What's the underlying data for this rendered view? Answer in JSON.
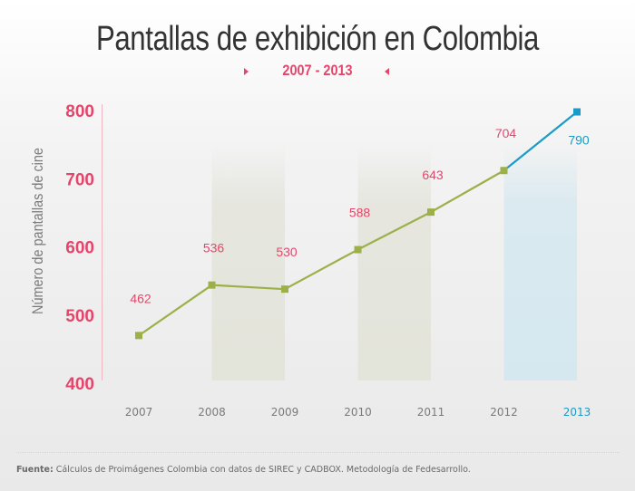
{
  "header": {
    "title": "Pantallas de exhibición en Colombia",
    "subtitle": "2007 - 2013"
  },
  "footer": {
    "source_label": "Fuente:",
    "source_text": " Cálculos de Proimágenes Colombia con datos de SIREC y CADBOX. Metodología de Fedesarrollo."
  },
  "colors": {
    "accent": "#e6456b",
    "line": "#9cb04a",
    "highlight": "#1a9ac6",
    "band": "#e3e4da",
    "band_highlight": "#d5e8f0"
  },
  "chart_data": {
    "type": "line",
    "title": "Pantallas de exhibición en Colombia",
    "subtitle": "2007 - 2013",
    "xlabel": "",
    "ylabel": "Número de pantallas de cine",
    "categories": [
      "2007",
      "2008",
      "2009",
      "2010",
      "2011",
      "2012",
      "2013"
    ],
    "series": [
      {
        "name": "Pantallas de exhibición",
        "values": [
          462,
          536,
          530,
          588,
          643,
          704,
          790
        ]
      }
    ],
    "highlighted_category": "2013",
    "shaded_categories": [
      "2008",
      "2010",
      "2012"
    ],
    "ylim": [
      400,
      800
    ],
    "yticks": [
      400,
      500,
      600,
      700,
      800
    ],
    "grid": false,
    "legend": "none"
  }
}
